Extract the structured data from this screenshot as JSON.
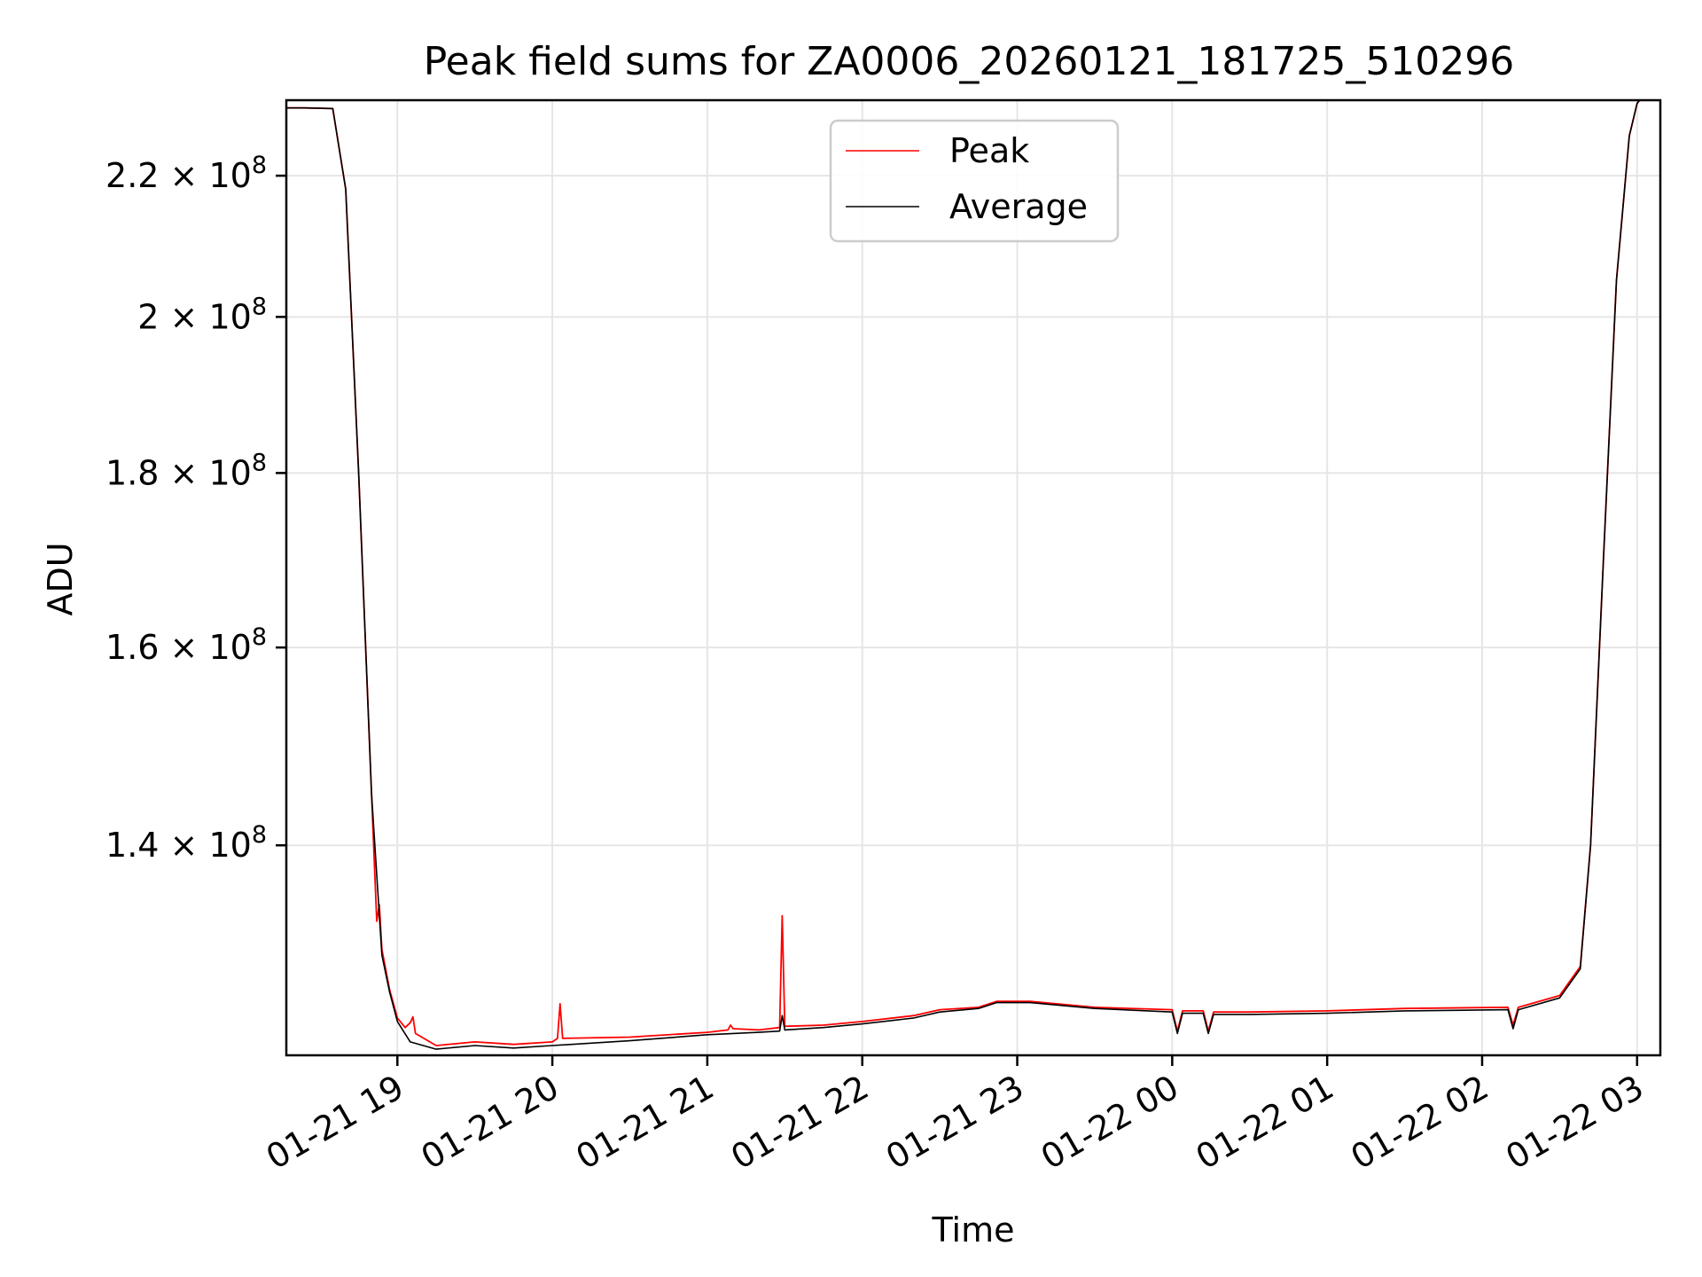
{
  "chart_data": {
    "type": "line",
    "title": "Peak field sums for ZA0006_20260121_181725_510296",
    "xlabel": "Time",
    "ylabel": "ADU",
    "y_scale": "log",
    "x_range": [
      "2026-01-21 18:17",
      "2026-01-22 03:09"
    ],
    "ylim": [
      121500000,
      231500000
    ],
    "grid": true,
    "legend_position": "top-center",
    "x_ticks": [
      {
        "at": "2026-01-21 19:00",
        "label": "01-21 19"
      },
      {
        "at": "2026-01-21 20:00",
        "label": "01-21 20"
      },
      {
        "at": "2026-01-21 21:00",
        "label": "01-21 21"
      },
      {
        "at": "2026-01-21 22:00",
        "label": "01-21 22"
      },
      {
        "at": "2026-01-21 23:00",
        "label": "01-21 23"
      },
      {
        "at": "2026-01-22 00:00",
        "label": "01-22 00"
      },
      {
        "at": "2026-01-22 01:00",
        "label": "01-22 01"
      },
      {
        "at": "2026-01-22 02:00",
        "label": "01-22 02"
      },
      {
        "at": "2026-01-22 03:00",
        "label": "01-22 03"
      }
    ],
    "y_ticks": [
      {
        "value": 140000000,
        "mant": "1.4",
        "exp": "8"
      },
      {
        "value": 160000000,
        "mant": "1.6",
        "exp": "8"
      },
      {
        "value": 180000000,
        "mant": "1.8",
        "exp": "8"
      },
      {
        "value": 200000000,
        "mant": "2",
        "exp": "8"
      },
      {
        "value": 220000000,
        "mant": "2.2",
        "exp": "8"
      }
    ],
    "series": [
      {
        "name": "Peak",
        "color": "#ff0000",
        "points": [
          [
            "2026-01-21 18:17",
            230300000
          ],
          [
            "2026-01-21 18:24",
            230300000
          ],
          [
            "2026-01-21 18:35",
            230200000
          ],
          [
            "2026-01-21 18:40",
            218000000
          ],
          [
            "2026-01-21 18:45",
            180000000
          ],
          [
            "2026-01-21 18:50",
            145000000
          ],
          [
            "2026-01-21 18:52",
            133000000
          ],
          [
            "2026-01-21 18:53",
            134500000
          ],
          [
            "2026-01-21 18:54",
            130500000
          ],
          [
            "2026-01-21 18:57",
            127000000
          ],
          [
            "2026-01-21 19:00",
            124600000
          ],
          [
            "2026-01-21 19:03",
            123800000
          ],
          [
            "2026-01-21 19:05",
            124200000
          ],
          [
            "2026-01-21 19:06",
            124700000
          ],
          [
            "2026-01-21 19:07",
            123300000
          ],
          [
            "2026-01-21 19:15",
            122300000
          ],
          [
            "2026-01-21 19:30",
            122600000
          ],
          [
            "2026-01-21 19:45",
            122400000
          ],
          [
            "2026-01-21 20:00",
            122600000
          ],
          [
            "2026-01-21 20:02",
            122900000
          ],
          [
            "2026-01-21 20:03",
            125800000
          ],
          [
            "2026-01-21 20:04",
            122900000
          ],
          [
            "2026-01-21 20:30",
            123000000
          ],
          [
            "2026-01-21 21:00",
            123400000
          ],
          [
            "2026-01-21 21:08",
            123600000
          ],
          [
            "2026-01-21 21:09",
            124000000
          ],
          [
            "2026-01-21 21:10",
            123700000
          ],
          [
            "2026-01-21 21:20",
            123600000
          ],
          [
            "2026-01-21 21:28",
            123800000
          ],
          [
            "2026-01-21 21:29",
            133500000
          ],
          [
            "2026-01-21 21:30",
            123900000
          ],
          [
            "2026-01-21 21:45",
            124000000
          ],
          [
            "2026-01-21 22:00",
            124300000
          ],
          [
            "2026-01-21 22:20",
            124800000
          ],
          [
            "2026-01-21 22:30",
            125300000
          ],
          [
            "2026-01-21 22:45",
            125500000
          ],
          [
            "2026-01-21 22:52",
            126000000
          ],
          [
            "2026-01-21 23:05",
            126000000
          ],
          [
            "2026-01-21 23:30",
            125500000
          ],
          [
            "2026-01-22 00:00",
            125300000
          ],
          [
            "2026-01-22 00:02",
            123500000
          ],
          [
            "2026-01-22 00:04",
            125200000
          ],
          [
            "2026-01-22 00:12",
            125200000
          ],
          [
            "2026-01-22 00:14",
            123500000
          ],
          [
            "2026-01-22 00:16",
            125100000
          ],
          [
            "2026-01-22 00:30",
            125100000
          ],
          [
            "2026-01-22 01:00",
            125200000
          ],
          [
            "2026-01-22 01:30",
            125400000
          ],
          [
            "2026-01-22 02:10",
            125500000
          ],
          [
            "2026-01-22 02:12",
            124000000
          ],
          [
            "2026-01-22 02:14",
            125500000
          ],
          [
            "2026-01-22 02:30",
            126500000
          ],
          [
            "2026-01-22 02:38",
            129000000
          ],
          [
            "2026-01-22 02:42",
            140000000
          ],
          [
            "2026-01-22 02:47",
            170000000
          ],
          [
            "2026-01-22 02:52",
            205000000
          ],
          [
            "2026-01-22 02:57",
            226000000
          ],
          [
            "2026-01-22 03:00",
            231000000
          ],
          [
            "2026-01-22 03:01",
            231500000
          ]
        ]
      },
      {
        "name": "Average",
        "color": "#000000",
        "points": [
          [
            "2026-01-21 18:17",
            230300000
          ],
          [
            "2026-01-21 18:24",
            230300000
          ],
          [
            "2026-01-21 18:35",
            230200000
          ],
          [
            "2026-01-21 18:40",
            218000000
          ],
          [
            "2026-01-21 18:45",
            180000000
          ],
          [
            "2026-01-21 18:50",
            145000000
          ],
          [
            "2026-01-21 18:54",
            130000000
          ],
          [
            "2026-01-21 18:57",
            126800000
          ],
          [
            "2026-01-21 19:00",
            124300000
          ],
          [
            "2026-01-21 19:05",
            122600000
          ],
          [
            "2026-01-21 19:15",
            122000000
          ],
          [
            "2026-01-21 19:30",
            122300000
          ],
          [
            "2026-01-21 19:45",
            122100000
          ],
          [
            "2026-01-21 20:00",
            122300000
          ],
          [
            "2026-01-21 20:30",
            122700000
          ],
          [
            "2026-01-21 21:00",
            123200000
          ],
          [
            "2026-01-21 21:20",
            123400000
          ],
          [
            "2026-01-21 21:28",
            123500000
          ],
          [
            "2026-01-21 21:29",
            124800000
          ],
          [
            "2026-01-21 21:30",
            123600000
          ],
          [
            "2026-01-21 21:45",
            123800000
          ],
          [
            "2026-01-21 22:00",
            124100000
          ],
          [
            "2026-01-21 22:20",
            124600000
          ],
          [
            "2026-01-21 22:30",
            125100000
          ],
          [
            "2026-01-21 22:45",
            125400000
          ],
          [
            "2026-01-21 22:52",
            125900000
          ],
          [
            "2026-01-21 23:05",
            125900000
          ],
          [
            "2026-01-21 23:30",
            125400000
          ],
          [
            "2026-01-22 00:00",
            125100000
          ],
          [
            "2026-01-22 00:02",
            123300000
          ],
          [
            "2026-01-22 00:04",
            125000000
          ],
          [
            "2026-01-22 00:12",
            125000000
          ],
          [
            "2026-01-22 00:14",
            123300000
          ],
          [
            "2026-01-22 00:16",
            124900000
          ],
          [
            "2026-01-22 00:30",
            124900000
          ],
          [
            "2026-01-22 01:00",
            125000000
          ],
          [
            "2026-01-22 01:30",
            125200000
          ],
          [
            "2026-01-22 02:10",
            125300000
          ],
          [
            "2026-01-22 02:12",
            123700000
          ],
          [
            "2026-01-22 02:14",
            125300000
          ],
          [
            "2026-01-22 02:30",
            126300000
          ],
          [
            "2026-01-22 02:38",
            128800000
          ],
          [
            "2026-01-22 02:42",
            140000000
          ],
          [
            "2026-01-22 02:47",
            170000000
          ],
          [
            "2026-01-22 02:52",
            205000000
          ],
          [
            "2026-01-22 02:57",
            226000000
          ],
          [
            "2026-01-22 03:00",
            231000000
          ],
          [
            "2026-01-22 03:01",
            231500000
          ]
        ]
      }
    ]
  }
}
